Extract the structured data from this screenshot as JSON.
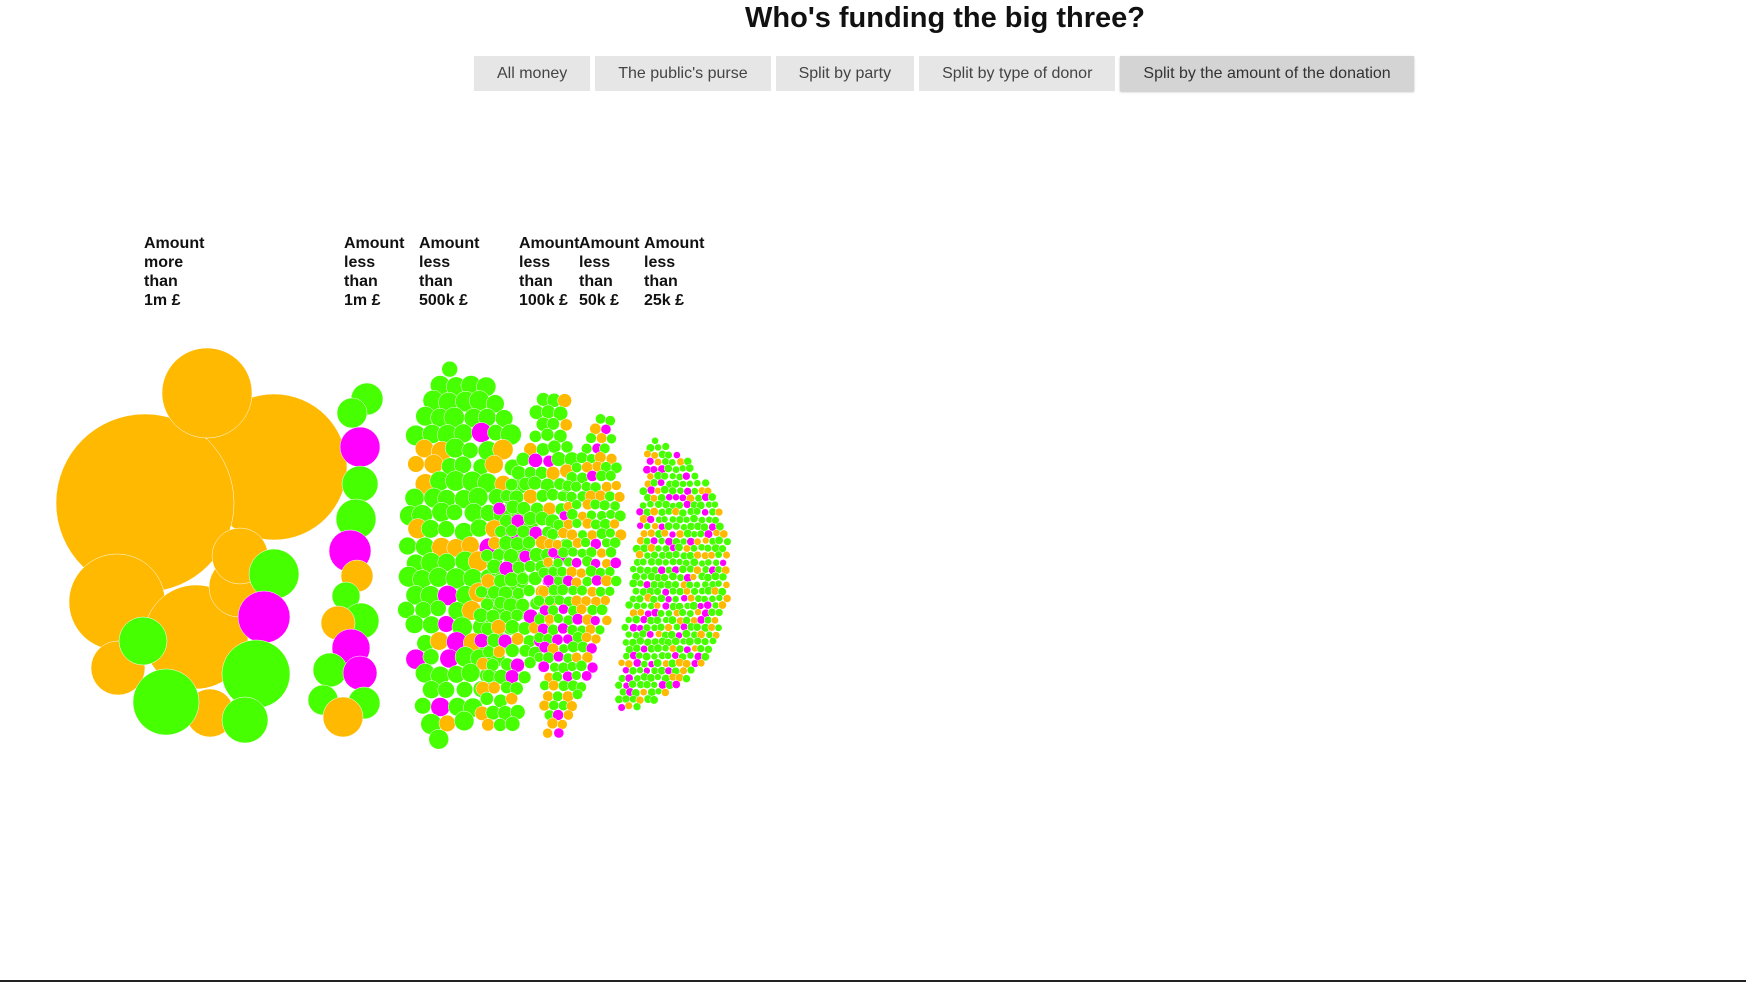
{
  "header": {
    "title": "Who's funding the big three?"
  },
  "tabs": [
    {
      "label": "All money",
      "active": false
    },
    {
      "label": "The public's purse",
      "active": false
    },
    {
      "label": "Split by party",
      "active": false
    },
    {
      "label": "Split by type of donor",
      "active": false
    },
    {
      "label": "Split by the amount of the donation",
      "active": true
    }
  ],
  "colors": {
    "orange": "#ffb900",
    "green": "#46ff00",
    "magenta": "#ff00ff"
  },
  "chart_data": {
    "type": "bubble-cluster",
    "groups": [
      {
        "label": [
          "Amount",
          "more",
          "than",
          "1m £"
        ]
      },
      {
        "label": [
          "Amount",
          "less",
          "than",
          "1m £"
        ]
      },
      {
        "label": [
          "Amount",
          "less",
          "than",
          "500k £"
        ]
      },
      {
        "label": [
          "Amount",
          "less",
          "than",
          "100k £"
        ]
      },
      {
        "label": [
          "Amount",
          "less",
          "than",
          "50k £"
        ]
      },
      {
        "label": [
          "Amount",
          "less",
          "than",
          "25k £"
        ]
      }
    ]
  }
}
